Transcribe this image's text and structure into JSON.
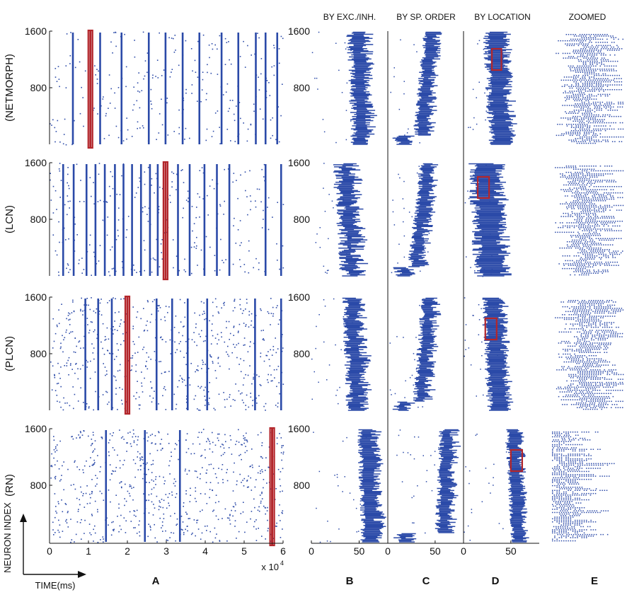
{
  "chart_data": {
    "type": "scatter",
    "description_units": "raster plots of neuron spikes",
    "network_labels": [
      "(NETMORPH)",
      "(LCN)",
      "(PLCN)",
      "(RN)"
    ],
    "column_headers": {
      "B": "BY EXC./INH.",
      "C": "BY SP. ORDER",
      "D": "BY LOCATION",
      "E": "ZOOMED"
    },
    "panel_letters": [
      "A",
      "B",
      "C",
      "D",
      "E"
    ],
    "y_axis": {
      "label": "NEURON INDEX",
      "range": [
        0,
        1600
      ],
      "ticks": [
        {
          "value": 800,
          "label": "800"
        },
        {
          "value": 1600,
          "label": "1600"
        }
      ]
    },
    "panel_a": {
      "xlabel": "TIME(ms)",
      "xlim": [
        0,
        6
      ],
      "x_exponent_label": "x 10",
      "x_exponent": "4",
      "x_ticks": [
        {
          "value": 0,
          "label": "0"
        },
        {
          "value": 1,
          "label": "1"
        },
        {
          "value": 2,
          "label": "2"
        },
        {
          "value": 3,
          "label": "3"
        },
        {
          "value": 4,
          "label": "4"
        },
        {
          "value": 5,
          "label": "5"
        },
        {
          "value": 6,
          "label": "6"
        }
      ],
      "series": [
        {
          "name": "NETMORPH",
          "burst_times": [
            0.6,
            1.05,
            1.3,
            1.85,
            2.55,
            2.98,
            3.42,
            3.85,
            4.42,
            4.85,
            5.3,
            5.55,
            5.85
          ],
          "highlight_time": 1.05,
          "background_dots": 260,
          "seed": 11
        },
        {
          "name": "LCN",
          "burst_times": [
            0.35,
            0.62,
            0.95,
            1.18,
            1.42,
            1.68,
            1.9,
            2.12,
            2.35,
            2.58,
            2.78,
            2.98,
            3.3,
            3.6,
            3.98,
            4.3,
            4.62,
            5.55,
            5.95
          ],
          "highlight_time": 2.98,
          "background_dots": 300,
          "seed": 23
        },
        {
          "name": "PLCN",
          "burst_times": [
            0.92,
            1.25,
            1.6,
            2.0,
            2.75,
            3.15,
            3.55,
            4.05,
            5.28,
            5.95
          ],
          "highlight_time": 2.0,
          "background_dots": 620,
          "seed": 37
        },
        {
          "name": "RN",
          "burst_times": [
            1.45,
            2.45,
            3.35,
            5.72
          ],
          "highlight_time": 5.72,
          "background_dots": 700,
          "seed": 51
        }
      ]
    },
    "burst_panels": {
      "x_ticks": [
        {
          "value": 0,
          "label": "0"
        },
        {
          "value": 50,
          "label": "50"
        }
      ],
      "xlim": [
        0,
        80
      ],
      "rows": [
        {
          "B": {
            "center": 50,
            "spread": 8,
            "shape": "sigmoid"
          },
          "C": {
            "center": 48,
            "spread": 12,
            "shape": "ordered"
          },
          "D": {
            "center": 40,
            "spread": 10,
            "shape": "band",
            "box_x": [
              30,
              40
            ],
            "box_y": [
              1050,
              1350
            ]
          }
        },
        {
          "B": {
            "center": 42,
            "spread": 12,
            "shape": "sigmoid"
          },
          "C": {
            "center": 45,
            "spread": 14,
            "shape": "ordered"
          },
          "D": {
            "center": 30,
            "spread": 14,
            "shape": "band",
            "box_x": [
              15,
              27
            ],
            "box_y": [
              1100,
              1400
            ]
          }
        },
        {
          "B": {
            "center": 45,
            "spread": 8,
            "shape": "sigmoid"
          },
          "C": {
            "center": 45,
            "spread": 10,
            "shape": "ordered"
          },
          "D": {
            "center": 37,
            "spread": 9,
            "shape": "band",
            "box_x": [
              23,
              35
            ],
            "box_y": [
              1000,
              1300
            ]
          }
        },
        {
          "B": {
            "center": 58,
            "spread": 6,
            "shape": "sigmoid"
          },
          "C": {
            "center": 62,
            "spread": 5,
            "shape": "ordered"
          },
          "D": {
            "center": 58,
            "spread": 6,
            "shape": "band",
            "box_x": [
              50,
              62
            ],
            "box_y": [
              1000,
              1300
            ]
          }
        }
      ]
    },
    "colors": {
      "spike": "#2b4aa8",
      "highlight": "#b3262b",
      "axis": "#111111"
    }
  }
}
